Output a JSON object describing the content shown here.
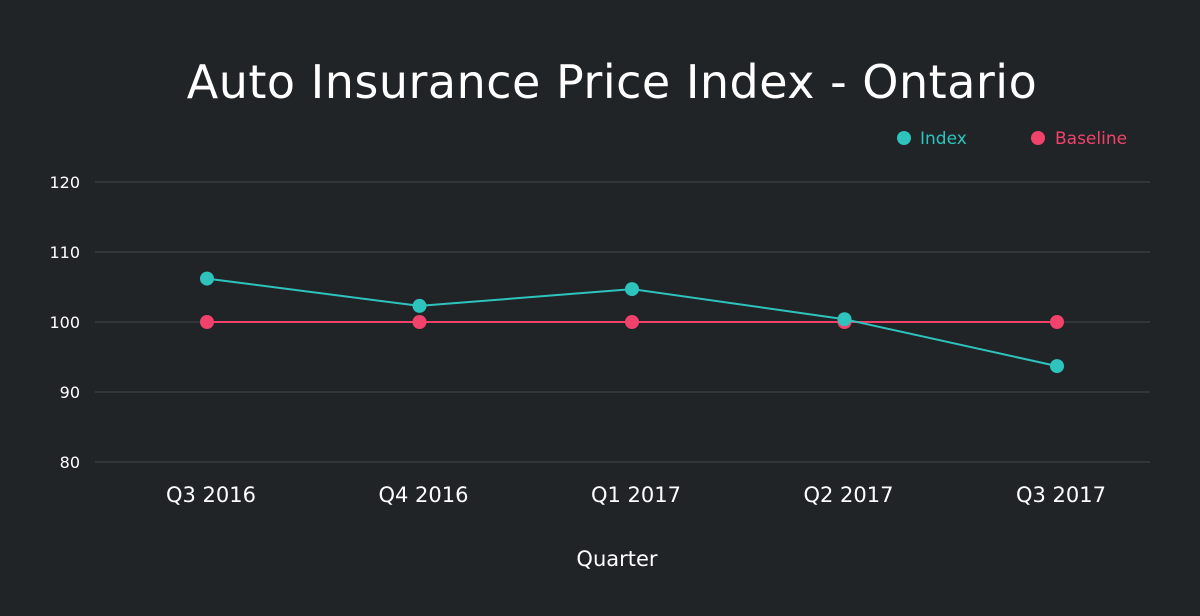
{
  "chart_data": {
    "type": "line",
    "title": "Auto Insurance Price Index - Ontario",
    "xlabel": "Quarter",
    "ylabel": "",
    "categories": [
      "Q3 2016",
      "Q4 2016",
      "Q1 2017",
      "Q2 2017",
      "Q3 2017"
    ],
    "series": [
      {
        "name": "Index",
        "color": "#2ec4bd",
        "values": [
          106.2,
          102.3,
          104.7,
          100.4,
          93.7
        ]
      },
      {
        "name": "Baseline",
        "color": "#f0426b",
        "values": [
          100,
          100,
          100,
          100,
          100
        ]
      }
    ],
    "ylim": [
      80,
      120
    ],
    "yticks": [
      80,
      90,
      100,
      110,
      120
    ],
    "grid": true,
    "legend_position": "top-right"
  },
  "colors": {
    "background": "#212427",
    "gridline": "#393c40",
    "text": "#ffffff"
  }
}
